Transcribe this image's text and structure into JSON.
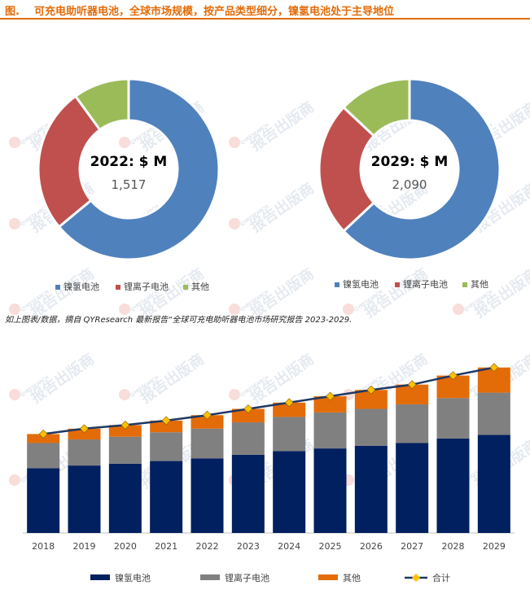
{
  "header": {
    "title": "图.    可充电助听器电池，全球市场规模，按产品类型细分，镍氢电池处于主导地位"
  },
  "source_note": "如上图表/数据，摘自 QYResearch 最新报告“全球可充电助听器电池市场研究报告 2023-2029.",
  "colors": {
    "nimh": "#4f81bd",
    "liion": "#c0504d",
    "other": "#9bbb59",
    "bar_nimh": "#002060",
    "bar_liion": "#808080",
    "bar_other": "#e36c09",
    "total_line": "#1f3864",
    "total_marker": "#ffc000"
  },
  "chart_data": [
    {
      "type": "pie",
      "donut": true,
      "title": "2022: $ M",
      "total_label": "1,517",
      "categories": [
        "镍氢电池",
        "锂离子电池",
        "其他"
      ],
      "values": [
        64,
        26,
        10
      ],
      "legend_position": "bottom"
    },
    {
      "type": "pie",
      "donut": true,
      "title": "2029: $ M",
      "total_label": "2,090",
      "categories": [
        "镍氢电池",
        "锂离子电池",
        "其他"
      ],
      "values": [
        63,
        24,
        13
      ],
      "legend_position": "bottom"
    },
    {
      "type": "bar",
      "stacked": true,
      "categories": [
        "2018",
        "2019",
        "2020",
        "2021",
        "2022",
        "2023",
        "2024",
        "2025",
        "2026",
        "2027",
        "2028",
        "2029"
      ],
      "series": [
        {
          "name": "镍氢电池",
          "values": [
            72,
            75,
            77,
            80,
            83,
            87,
            91,
            94,
            97,
            100,
            105,
            109
          ]
        },
        {
          "name": "锂离子电池",
          "values": [
            28,
            29,
            30,
            32,
            33,
            36,
            38,
            40,
            41,
            43,
            45,
            47
          ]
        },
        {
          "name": "其他",
          "values": [
            10,
            12,
            13,
            13,
            15,
            15,
            16,
            18,
            21,
            22,
            25,
            28
          ]
        }
      ],
      "line": {
        "name": "合计",
        "values": [
          110,
          116,
          120,
          125,
          131,
          138,
          145,
          152,
          159,
          165,
          175,
          184
        ]
      },
      "ylim": [
        0,
        190
      ],
      "legend_position": "bottom",
      "grid": false
    }
  ],
  "watermarks": {
    "text": "报告出版商",
    "logo": "QYRESEARCH"
  }
}
